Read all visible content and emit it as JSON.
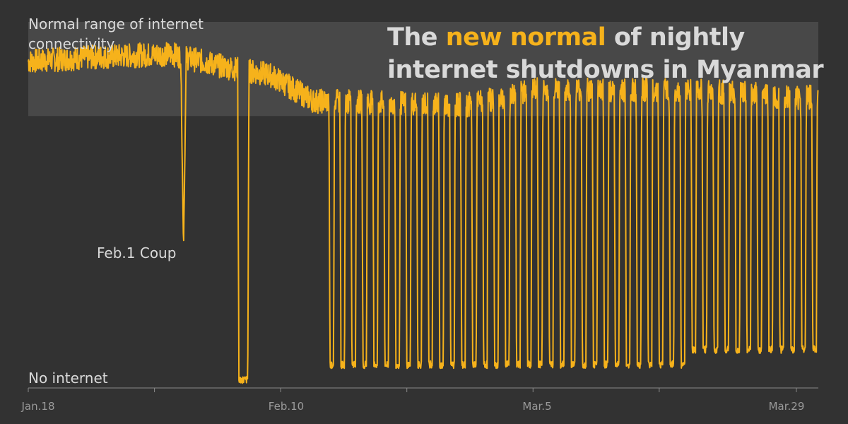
{
  "title": {
    "part1": "The ",
    "highlight": "new normal",
    "part2": " of nightly internet shutdowns in Myanmar"
  },
  "labels": {
    "normal_range": "Normal range of internet connectivity",
    "no_internet": "No internet",
    "coup": "Feb.1 Coup"
  },
  "colors": {
    "background": "#323232",
    "line": "#f6b21b",
    "band": "#4a4a4a",
    "text": "#d9d9d9",
    "highlight": "#f6b21b",
    "axis": "#8a8a8a"
  },
  "chart_data": {
    "type": "line",
    "title": "The new normal of nightly internet shutdowns in Myanmar",
    "x_axis": {
      "start": "Jan.18",
      "end": "Mar.31",
      "ticks": [
        "Jan.18",
        "Feb.10",
        "Mar.5",
        "Mar.29"
      ],
      "tick_days": [
        0,
        23,
        46,
        70
      ],
      "minor_ticks": [
        "Jan.30",
        "Feb.22",
        "Mar.17"
      ],
      "minor_tick_days": [
        11.5,
        34.5,
        57.5
      ]
    },
    "y_axis": {
      "min_label": "No internet",
      "range": [
        0,
        1
      ]
    },
    "normal_band": {
      "label": "Normal range of internet connectivity",
      "low": 0.72,
      "high": 0.97
    },
    "annotations": [
      {
        "label": "Feb.1 Coup",
        "day": 14
      }
    ],
    "series": [
      {
        "baseline": [
          [
            0,
            0.865
          ],
          [
            5,
            0.875
          ],
          [
            13,
            0.885
          ],
          [
            18,
            0.85
          ],
          [
            22,
            0.83
          ],
          [
            26,
            0.76
          ],
          [
            40,
            0.75
          ],
          [
            46,
            0.79
          ],
          [
            60,
            0.79
          ],
          [
            70,
            0.77
          ],
          [
            72,
            0.77
          ]
        ],
        "outages": [
          {
            "day": 14.15,
            "low": 0.37
          },
          {
            "start": 19.2,
            "end": 20.0,
            "low": 0.02
          }
        ],
        "nightly_shutdowns": {
          "start_day": 27.4,
          "end_day": 72,
          "period_days": 1,
          "low": 0.06,
          "late_season_low": 0.1
        }
      }
    ]
  }
}
